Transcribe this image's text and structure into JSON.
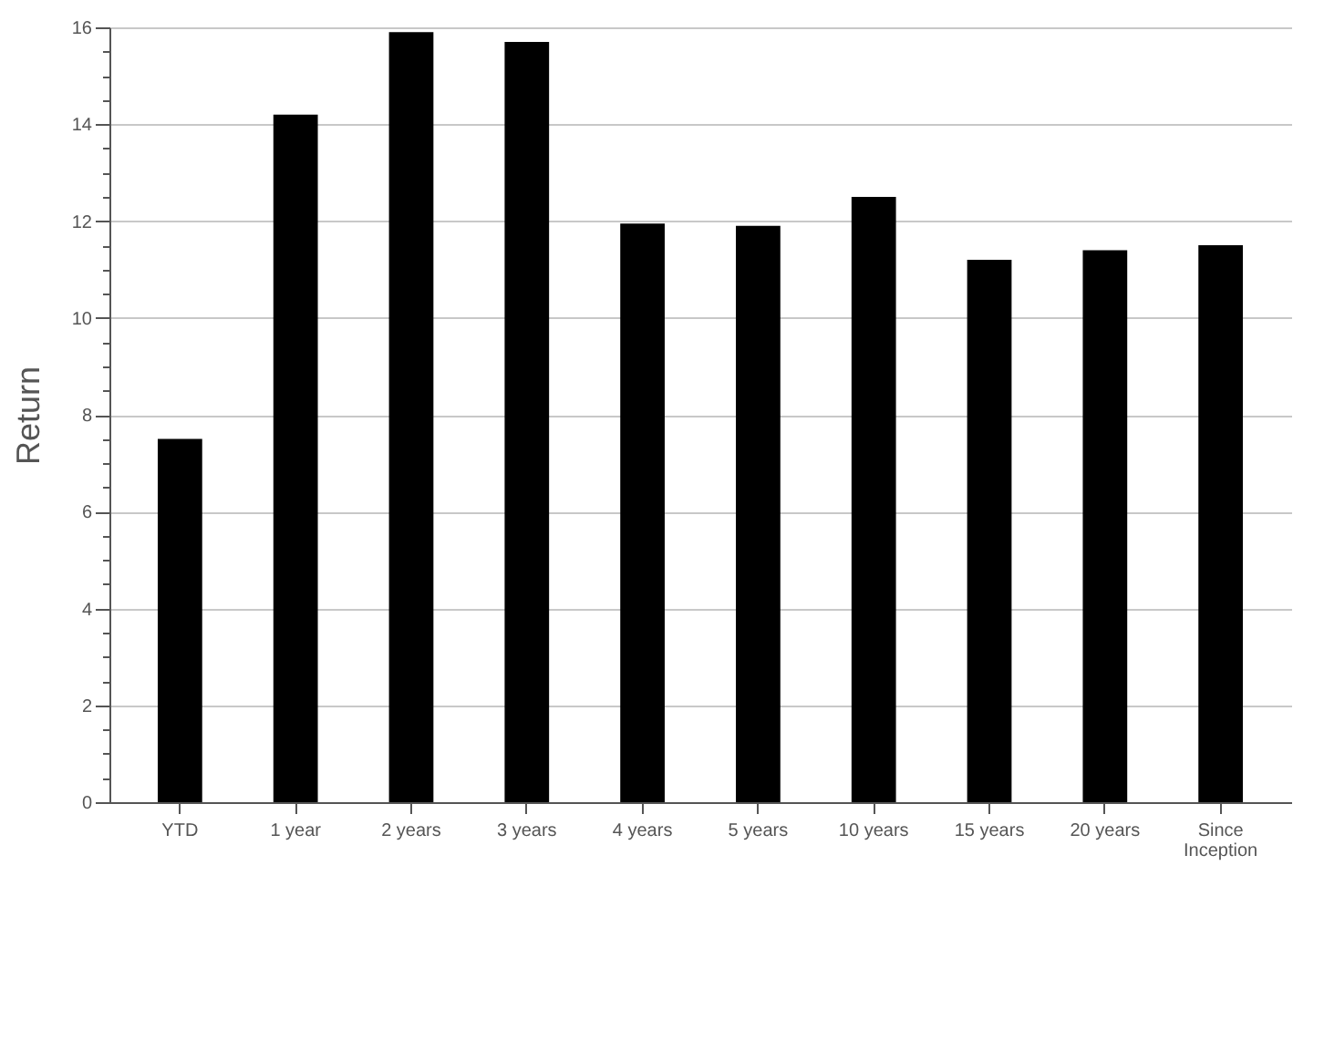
{
  "chart_data": {
    "type": "bar",
    "ylabel": "Return",
    "categories": [
      "YTD",
      "1 year",
      "2 years",
      "3 years",
      "4 years",
      "5 years",
      "10 years",
      "15 years",
      "20 years",
      "Since Inception"
    ],
    "series": [
      {
        "color": "#000000",
        "values": [
          7.5,
          14.2,
          15.9,
          15.7,
          11.95,
          11.9,
          12.5,
          11.2,
          11.4,
          11.5
        ]
      }
    ],
    "ylim": [
      0,
      16
    ],
    "yticks": [
      0,
      {
        "value": 0.5,
        "label": null
      },
      {
        "value": 1,
        "label": null
      },
      {
        "value": 1.5,
        "label": null
      },
      2,
      {
        "value": 2.5,
        "label": null
      },
      {
        "value": 3,
        "label": null
      },
      {
        "value": 3.5,
        "label": null
      },
      4,
      {
        "value": 4.5,
        "label": null
      },
      {
        "value": 5,
        "label": null
      },
      {
        "value": 5.5,
        "label": null
      },
      6,
      {
        "value": 6.5,
        "label": null
      },
      {
        "value": 7,
        "label": null
      },
      {
        "value": 7.5,
        "label": null
      },
      8,
      {
        "value": 8.5,
        "label": null
      },
      {
        "value": 9,
        "label": null
      },
      {
        "value": 9.5,
        "label": null
      },
      10,
      {
        "value": 10.5,
        "label": null
      },
      {
        "value": 11,
        "label": null
      },
      {
        "value": 11.5,
        "label": null
      },
      12,
      {
        "value": 12.5,
        "label": null
      },
      {
        "value": 13,
        "label": null
      },
      {
        "value": 13.5,
        "label": null
      },
      14,
      {
        "value": 14.5,
        "label": null
      },
      {
        "value": 15,
        "label": null
      },
      {
        "value": 15.5,
        "label": null
      },
      16
    ],
    "grid": "y"
  }
}
